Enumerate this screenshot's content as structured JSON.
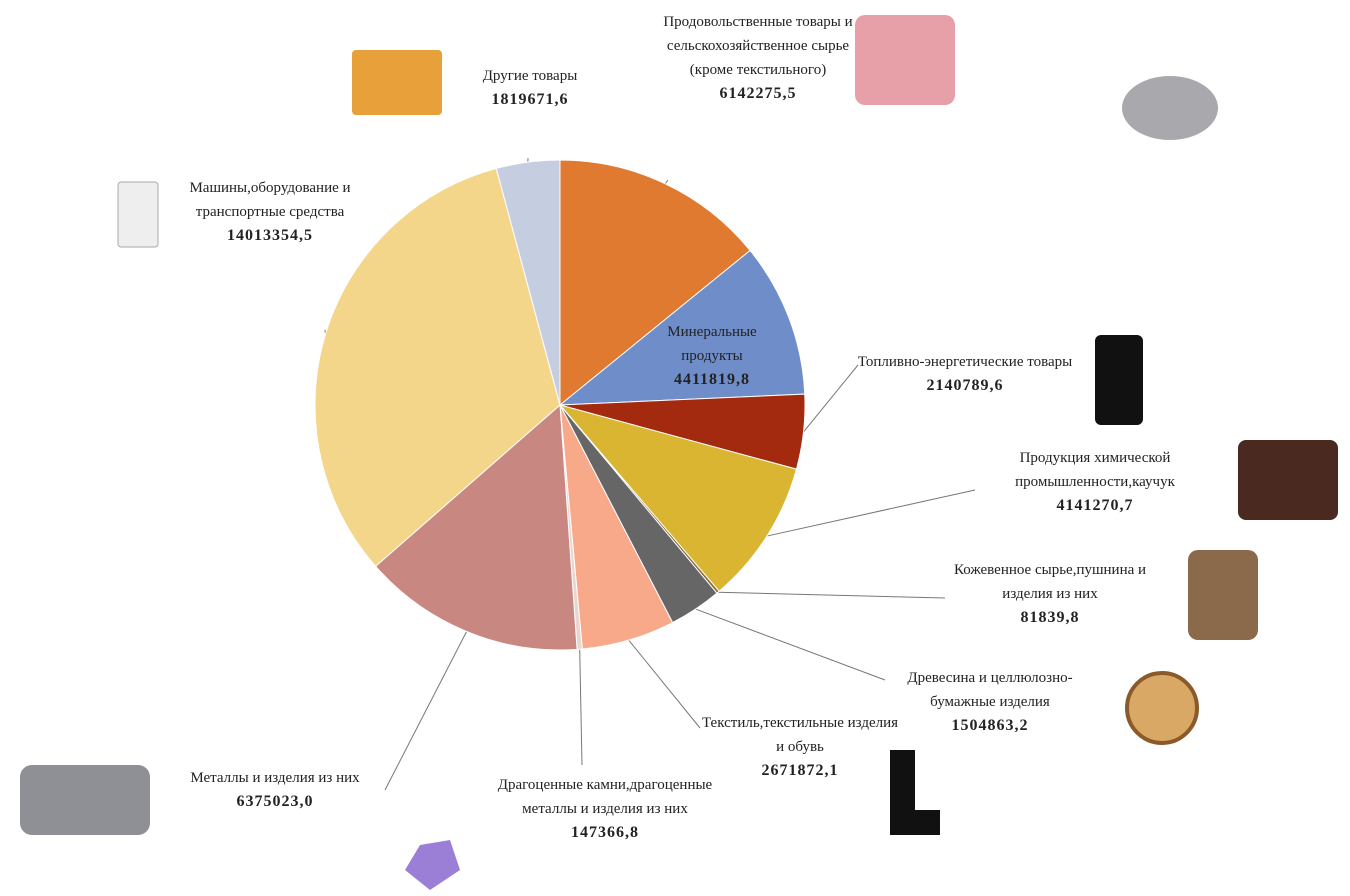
{
  "chart_data": {
    "type": "pie",
    "categories": [
      "Продовольственные товары и сельскохозяйственное сырье (кроме текстильного)",
      "Минеральные продукты",
      "Топливно-энергетические товары",
      "Продукция химической промышленности,каучук",
      "Кожевенное сырье,пушнина и изделия из них",
      "Древесина и целлюлозно-бумажные изделия",
      "Текстиль,текстильные изделия и обувь",
      "Драгоценные камни,драгоценные металлы и изделия из них",
      "Металлы и изделия из них",
      "Машины,оборудование и транспортные средства",
      "Другие товары"
    ],
    "values": [
      6142275.5,
      4411819.8,
      2140789.6,
      4141270.7,
      81839.8,
      1504863.2,
      2671872.1,
      147366.8,
      6375023.0,
      14013354.5,
      1819671.6
    ],
    "value_labels": [
      "6142275,5",
      "4411819,8",
      "2140789,6",
      "4141270,7",
      "81839,8",
      "1504863,2",
      "2671872,1",
      "147366,8",
      "6375023,0",
      "14013354,5",
      "1819671,6"
    ],
    "colors": [
      "#e07a30",
      "#6f8dc9",
      "#a3290f",
      "#d9b531",
      "#8a6a3a",
      "#666666",
      "#f7a98a",
      "#e9d6cf",
      "#c98782",
      "#f3d689",
      "#c5cde0"
    ]
  }
}
